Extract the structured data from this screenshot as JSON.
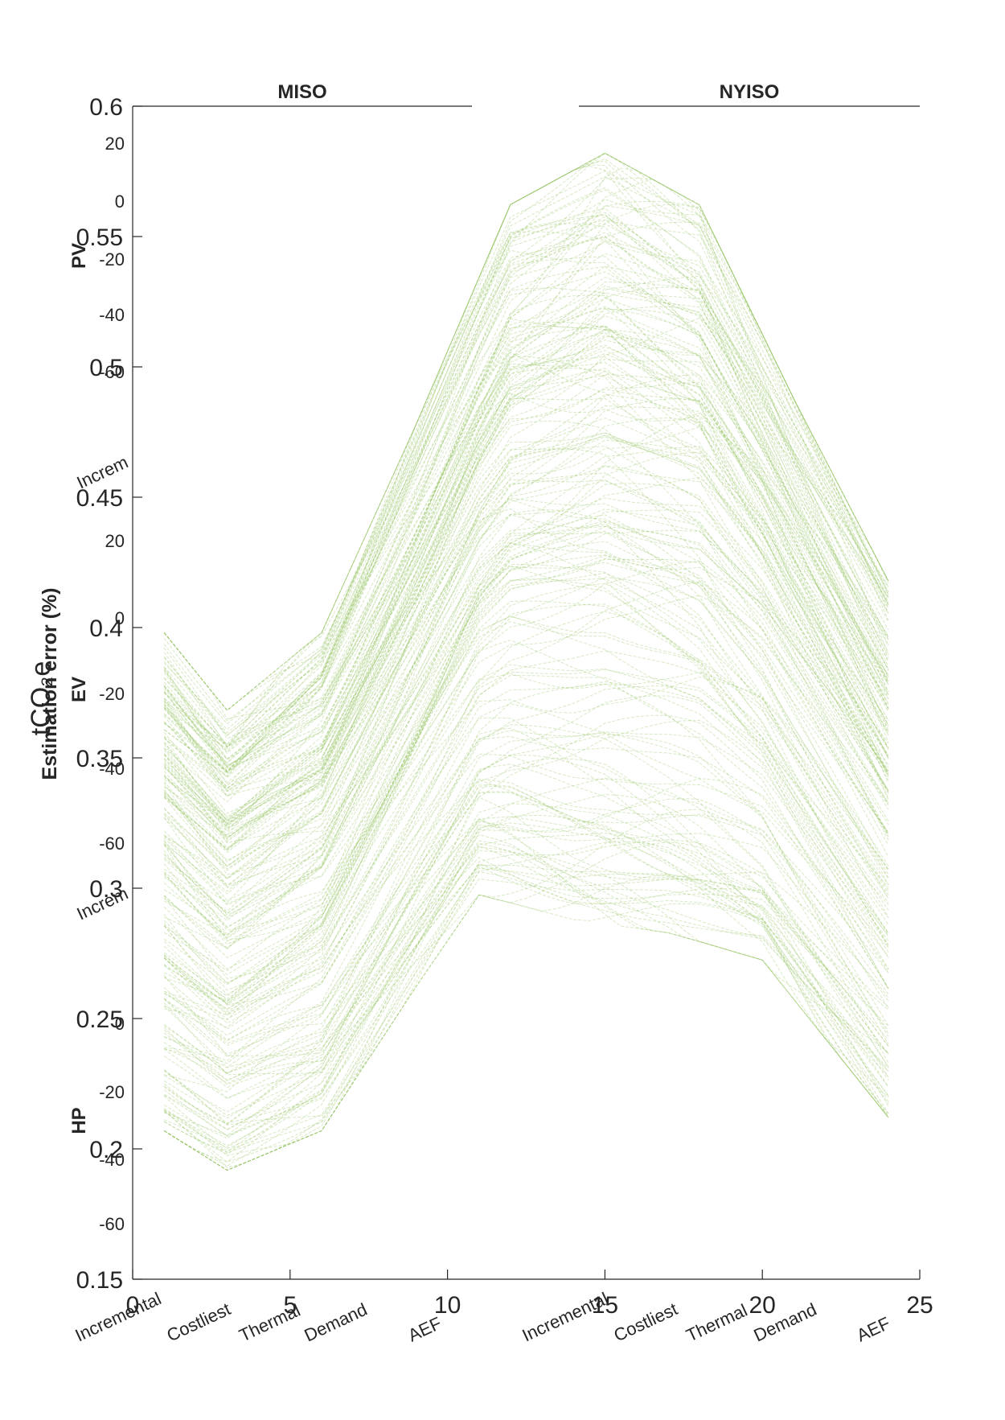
{
  "chart_data": {
    "type": "line",
    "ylabel": "Estimation error (%)",
    "overlay_ylabel": "tCO₂e",
    "outer_axis": {
      "xlim": [
        0,
        25
      ],
      "ylim": [
        0.15,
        0.6
      ],
      "x_ticks": [
        "0",
        "5",
        "10",
        "15",
        "20",
        "25"
      ],
      "y_ticks": [
        "0.6",
        "0.55",
        "0.5",
        "0.45",
        "0.4",
        "0.35",
        "0.3",
        "0.25",
        "0.2",
        "0.15"
      ]
    },
    "panels": [
      {
        "title": "MISO",
        "categories": [
          "Incremental",
          "Costliest",
          "Thermal",
          "Demand",
          "AEF"
        ]
      },
      {
        "title": "NYISO",
        "categories": [
          "Incremental",
          "Costliest",
          "Thermal",
          "Demand",
          "AEF"
        ]
      }
    ],
    "rows": [
      {
        "label": "PV",
        "ticks": [
          "20",
          "0",
          "-20",
          "-40",
          "-60"
        ],
        "ylim": [
          -60,
          20
        ]
      },
      {
        "label": "EV",
        "ticks": [
          "20",
          "0",
          "-20",
          "-40",
          "-60"
        ],
        "ylim": [
          -60,
          20
        ]
      },
      {
        "label": "HP",
        "ticks": [
          "0",
          "-20",
          "-40",
          "-60"
        ],
        "ylim": [
          -60,
          0
        ]
      }
    ],
    "partial_labels": [
      "Increm",
      "Increm"
    ],
    "series": [
      {
        "x": [
          1,
          24
        ],
        "y_range": [
          0.19,
          0.59
        ],
        "band_upper": [
          [
            1,
            0.4
          ],
          [
            3,
            0.37
          ],
          [
            6,
            0.4
          ],
          [
            9,
            0.48
          ],
          [
            12,
            0.565
          ],
          [
            15,
            0.585
          ],
          [
            18,
            0.565
          ],
          [
            21,
            0.49
          ],
          [
            24,
            0.42
          ]
        ],
        "band_lower": [
          [
            1,
            0.205
          ],
          [
            3,
            0.19
          ],
          [
            6,
            0.205
          ],
          [
            9,
            0.26
          ],
          [
            11,
            0.295
          ],
          [
            14,
            0.285
          ],
          [
            17,
            0.28
          ],
          [
            20,
            0.27
          ],
          [
            24,
            0.21
          ]
        ]
      }
    ],
    "line_color": "#8fbf5a",
    "grid": false
  }
}
